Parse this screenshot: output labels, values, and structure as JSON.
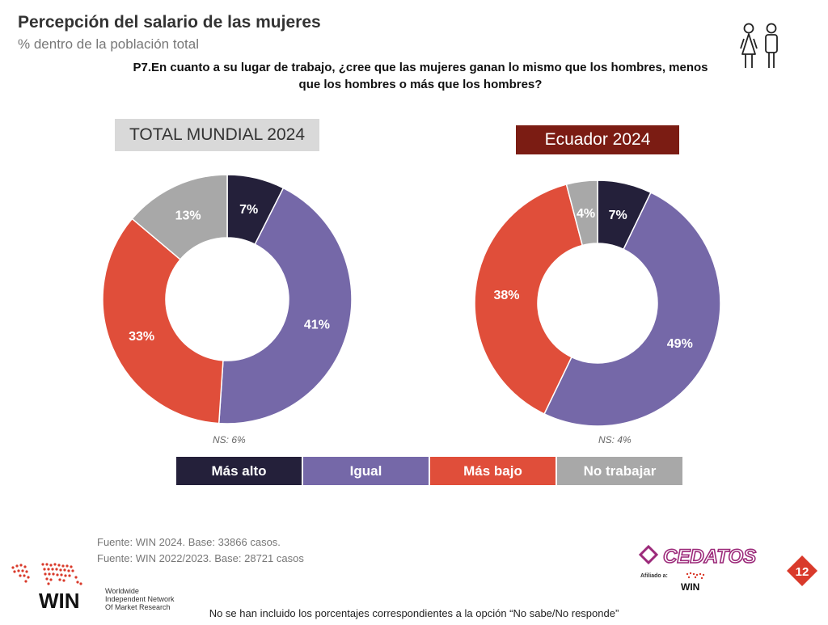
{
  "header": {
    "title": "Percepción del salario de las mujeres",
    "subtitle": "% dentro de la población total",
    "question_line1": "P7.En cuanto a su lugar de trabajo, ¿cree que las mujeres ganan lo mismo que los hombres, menos",
    "question_line2": "que los hombres o más que los hombres?"
  },
  "icons": {
    "people": "man-woman-icon"
  },
  "colors": {
    "mas_alto": "#24203a",
    "igual": "#7568a8",
    "mas_bajo": "#e04e3a",
    "no_trabajar": "#a8a8a8",
    "ecuador_box": "#7b1c13",
    "total_box": "#d9d9d9"
  },
  "chart_data": [
    {
      "type": "pie",
      "title": "TOTAL MUNDIAL  2024",
      "categories": [
        "Más alto",
        "Igual",
        "Más bajo",
        "No trabajar"
      ],
      "values": [
        7,
        41,
        33,
        13
      ],
      "labels": [
        "7%",
        "41%",
        "33%",
        "13%"
      ],
      "note": "NS: 6%"
    },
    {
      "type": "pie",
      "title": "Ecuador 2024",
      "categories": [
        "Más alto",
        "Igual",
        "Más bajo",
        "No trabajar"
      ],
      "values": [
        7,
        49,
        38,
        4
      ],
      "labels": [
        "7%",
        "49%",
        "38%",
        "4%"
      ],
      "note": "NS: 4%"
    }
  ],
  "legend": [
    "Más alto",
    "Igual",
    "Más bajo",
    "No trabajar"
  ],
  "footer": {
    "source1": "Fuente: WIN 2024. Base: 33866 casos.",
    "source2": "Fuente: WIN 2022/2023. Base: 28721 casos",
    "note": "No se han incluido los porcentajes correspondientes a la opción “No sabe/No responde”",
    "win_brand": "WIN",
    "win_tagline1": "Worldwide",
    "win_tagline2": "Independent Network",
    "win_tagline3": "Of Market Research",
    "cedatos_brand": "CEDATOS",
    "cedatos_affiliate": "Afiliado a:",
    "page_number": "12"
  }
}
